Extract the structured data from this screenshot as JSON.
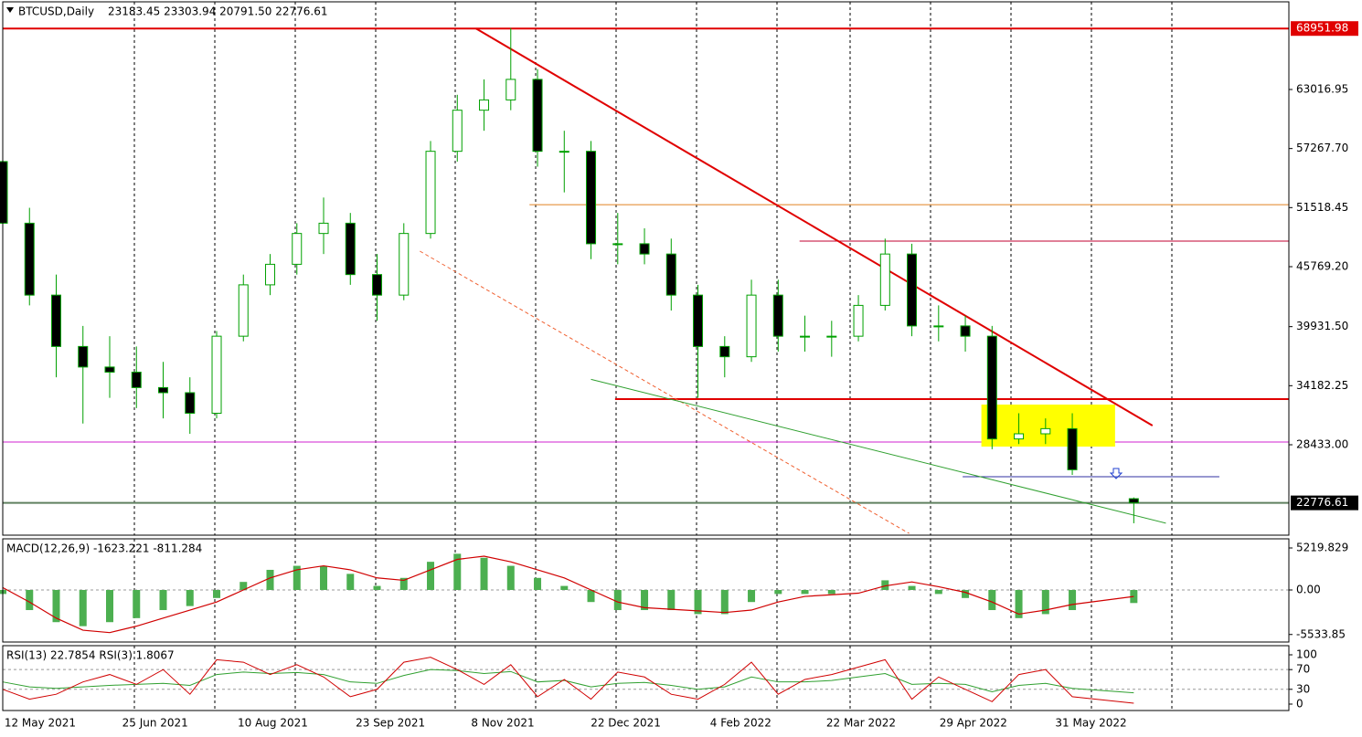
{
  "chart_data": [
    {
      "type": "candlestick",
      "title": "BTCUSD,Daily",
      "subtitle": "23183.45 23303.94 20791.50 22776.61",
      "x": [
        -14,
        -4,
        6,
        16,
        26,
        36,
        46,
        56,
        66,
        76,
        86,
        96,
        106,
        116,
        126,
        136,
        146,
        156,
        166,
        176,
        186,
        196,
        206,
        216,
        226,
        236,
        246,
        256,
        266,
        276,
        286,
        296,
        306,
        316,
        326,
        336,
        346,
        356,
        366,
        376,
        386,
        409
      ],
      "open": [
        56000,
        50000,
        43000,
        38000,
        36000,
        35500,
        34000,
        33500,
        31500,
        39000,
        44000,
        46000,
        49000,
        50000,
        45000,
        43000,
        49000,
        57000,
        61000,
        62000,
        64000,
        57000,
        57000,
        48000,
        48000,
        47000,
        43000,
        38000,
        37000,
        43000,
        39000,
        39000,
        39000,
        42000,
        47000,
        40000,
        40000,
        39000,
        29000,
        29500,
        30000,
        23183.45
      ],
      "high": [
        58000,
        51500,
        45000,
        40000,
        39000,
        38000,
        36500,
        35000,
        39500,
        45000,
        47000,
        50000,
        52500,
        51000,
        47000,
        50000,
        58000,
        62500,
        64000,
        69000,
        65000,
        59000,
        58000,
        51000,
        49500,
        48500,
        44000,
        39000,
        44500,
        44500,
        41000,
        40500,
        43000,
        48500,
        48000,
        42000,
        41000,
        40000,
        31500,
        31000,
        31500,
        23303.94
      ],
      "low": [
        49000,
        42000,
        35000,
        30500,
        33000,
        32000,
        31000,
        29500,
        31000,
        38500,
        43000,
        45000,
        47000,
        44000,
        40500,
        42500,
        48500,
        56000,
        59000,
        61000,
        55500,
        53000,
        46500,
        46000,
        46000,
        41500,
        33000,
        35000,
        36500,
        37500,
        37500,
        37000,
        38500,
        41500,
        39000,
        38500,
        37500,
        28000,
        28500,
        28500,
        25500,
        20791.5
      ],
      "close": [
        50000,
        43000,
        38000,
        36000,
        35500,
        34000,
        33500,
        31500,
        39000,
        44000,
        46000,
        49000,
        50000,
        45000,
        43000,
        49000,
        57000,
        61000,
        62000,
        64000,
        57000,
        57000,
        48000,
        48000,
        47000,
        43000,
        38000,
        37000,
        43000,
        39000,
        39000,
        39000,
        42000,
        47000,
        40000,
        40000,
        39000,
        29000,
        29500,
        30000,
        26000,
        22776.61
      ],
      "up_color": "#ffffff",
      "down_color": "#000000",
      "wick_color": "#00a000",
      "xlim": [
        -14,
        467
      ],
      "ylim": [
        19632,
        71550
      ],
      "yticks": [
        63016.95,
        {
          "value": 57267.7,
          "label": "57267.70"
        },
        51518.45,
        {
          "value": 45769.2,
          "label": "45769.20"
        },
        {
          "value": 39931.5,
          "label": "39931.50"
        },
        34182.25,
        {
          "value": 28433,
          "label": "28433.00"
        }
      ],
      "levels": [
        {
          "value": 68951.98,
          "color": "#e00000",
          "from": -14,
          "to": 467,
          "tag": true
        },
        {
          "value": 51800,
          "color": "#e08020",
          "from": 183,
          "to": 467
        },
        {
          "value": 48258,
          "color": "#c00030",
          "from": 284,
          "to": 467
        },
        {
          "value": 32878,
          "color": "#e00000",
          "from": 215,
          "to": 467
        },
        {
          "value": 28700,
          "color": "#d020d0",
          "from": -14,
          "to": 467
        },
        {
          "value": 25322,
          "color": "#3030a0",
          "from": 345,
          "to": 441
        },
        {
          "value": 22776.61,
          "color": "#608060",
          "from": -14,
          "to": 467,
          "tag": true
        }
      ],
      "trendlines": [
        {
          "x": [
            163,
            416
          ],
          "y": [
            68951.98,
            30300
          ],
          "color": "#e00000",
          "width": 2
        },
        {
          "x": [
            142,
            325
          ],
          "y": [
            47280,
            19800
          ],
          "color": "#f06030",
          "width": 1,
          "dashed": true
        },
        {
          "x": [
            206,
            421
          ],
          "y": [
            34800,
            20800
          ],
          "color": "#30a030",
          "width": 1
        }
      ],
      "zone": {
        "x": [
          352,
          402
        ],
        "y": [
          28255,
          32345
        ],
        "color": "#ffff00"
      }
    },
    {
      "type": "macd",
      "title": "MACD(12,26,9) -1623.221 -811.284",
      "x": [
        -14,
        -4,
        6,
        16,
        26,
        36,
        46,
        56,
        66,
        76,
        86,
        96,
        106,
        116,
        126,
        136,
        146,
        156,
        166,
        176,
        186,
        196,
        206,
        216,
        226,
        236,
        246,
        256,
        266,
        276,
        286,
        296,
        306,
        316,
        326,
        336,
        346,
        356,
        366,
        376,
        386,
        409
      ],
      "series": [
        {
          "color": "#4caf50",
          "values": [
            -500,
            -2500,
            -4000,
            -4500,
            -4000,
            -3500,
            -2500,
            -2000,
            -1000,
            1000,
            2500,
            3000,
            3000,
            2000,
            500,
            1500,
            3500,
            4500,
            4000,
            3000,
            1500,
            500,
            -1500,
            -2500,
            -2500,
            -2500,
            -3000,
            -3000,
            -1500,
            -500,
            -500,
            -500,
            0,
            1200,
            500,
            -500,
            -1000,
            -2500,
            -3500,
            -3000,
            -2500,
            -1623.221
          ]
        },
        {
          "color": "#d00000",
          "values": [
            300,
            -1500,
            -3500,
            -5000,
            -5300,
            -4500,
            -3500,
            -2500,
            -1500,
            0,
            1500,
            2500,
            3000,
            2500,
            1500,
            1200,
            2500,
            3800,
            4200,
            3500,
            2500,
            1500,
            0,
            -1500,
            -2200,
            -2400,
            -2600,
            -2800,
            -2500,
            -1500,
            -800,
            -600,
            -400,
            500,
            1000,
            400,
            -300,
            -1500,
            -3000,
            -2500,
            -1800,
            -811.284
          ]
        }
      ],
      "xlim": [
        -14,
        467
      ],
      "ylim": [
        -6470,
        6355
      ],
      "yticks": [
        5219.829,
        {
          "value": 0,
          "label": "0.00"
        },
        -5533.85
      ],
      "levels": [
        0
      ]
    },
    {
      "type": "rsi",
      "title": "RSI(13) 22.7854  RSI(3) 1.8067",
      "x": [
        -14,
        -4,
        6,
        16,
        26,
        36,
        46,
        56,
        66,
        76,
        86,
        96,
        106,
        116,
        126,
        136,
        146,
        156,
        166,
        176,
        186,
        196,
        206,
        216,
        226,
        236,
        246,
        256,
        266,
        276,
        286,
        296,
        306,
        316,
        326,
        336,
        346,
        356,
        366,
        376,
        386,
        409
      ],
      "series": [
        {
          "color": "#30a030",
          "values": [
            45,
            35,
            32,
            35,
            38,
            40,
            42,
            38,
            60,
            65,
            62,
            64,
            60,
            45,
            42,
            58,
            70,
            68,
            62,
            66,
            45,
            48,
            35,
            42,
            44,
            38,
            30,
            35,
            55,
            45,
            45,
            48,
            55,
            62,
            40,
            42,
            40,
            25,
            38,
            42,
            32,
            22.7854
          ]
        },
        {
          "color": "#d00000",
          "values": [
            30,
            10,
            20,
            45,
            60,
            40,
            70,
            20,
            90,
            85,
            60,
            80,
            55,
            15,
            30,
            85,
            95,
            70,
            40,
            80,
            15,
            50,
            10,
            65,
            55,
            20,
            10,
            40,
            85,
            20,
            50,
            60,
            75,
            90,
            10,
            55,
            30,
            5,
            60,
            70,
            15,
            1.8067
          ]
        }
      ],
      "xlim": [
        -14,
        467
      ],
      "ylim": [
        -13,
        118.5
      ],
      "yticks": [
        100,
        70,
        30,
        0
      ],
      "levels": [
        70,
        30
      ],
      "xticks": [
        {
          "value": 0,
          "label": "12 May 2021"
        },
        {
          "value": 43,
          "label": "25 Jun 2021"
        },
        {
          "value": 87,
          "label": "10 Aug 2021"
        },
        {
          "value": 131,
          "label": "23 Sep 2021"
        },
        {
          "value": 173,
          "label": "8 Nov 2021"
        },
        {
          "value": 219,
          "label": "22 Dec 2021"
        },
        {
          "value": 262,
          "label": "4 Feb 2022"
        },
        {
          "value": 307,
          "label": "22 Mar 2022"
        },
        {
          "value": 349,
          "label": "29 Apr 2022"
        },
        {
          "value": 393,
          "label": "31 May 2022"
        }
      ]
    }
  ]
}
